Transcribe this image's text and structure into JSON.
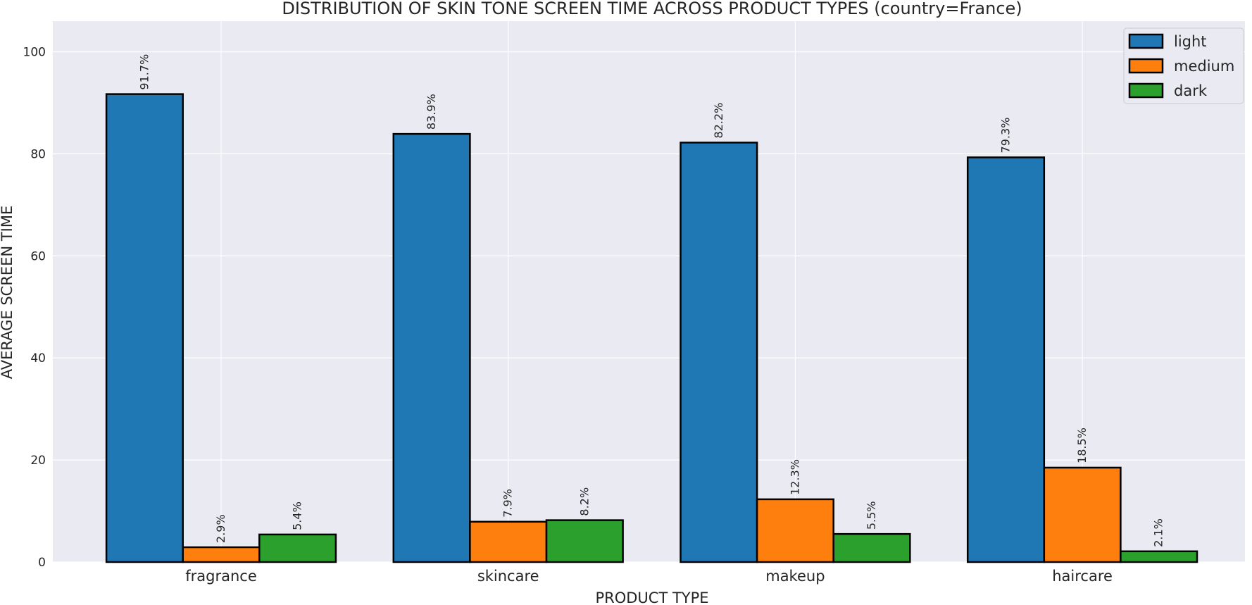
{
  "chart_data": {
    "type": "bar",
    "title": "DISTRIBUTION OF SKIN TONE SCREEN TIME ACROSS PRODUCT TYPES (country=France)",
    "xlabel": "PRODUCT TYPE",
    "ylabel": "AVERAGE SCREEN TIME",
    "categories": [
      "fragrance",
      "skincare",
      "makeup",
      "haircare"
    ],
    "series": [
      {
        "name": "light",
        "color": "#1f77b4",
        "values": [
          91.7,
          83.9,
          82.2,
          79.3
        ],
        "labels": [
          "91.7%",
          "83.9%",
          "82.2%",
          "79.3%"
        ]
      },
      {
        "name": "medium",
        "color": "#ff7f0e",
        "values": [
          2.9,
          7.9,
          12.3,
          18.5
        ],
        "labels": [
          "2.9%",
          "7.9%",
          "12.3%",
          "18.5%"
        ]
      },
      {
        "name": "dark",
        "color": "#2ca02c",
        "values": [
          5.4,
          8.2,
          5.5,
          2.1
        ],
        "labels": [
          "5.4%",
          "8.2%",
          "5.5%",
          "2.1%"
        ]
      }
    ],
    "ylim": [
      0,
      106
    ],
    "yticks": [
      0,
      20,
      40,
      60,
      80,
      100
    ],
    "grid": true,
    "legend_position": "top-right",
    "background": "#eaeaf2"
  }
}
